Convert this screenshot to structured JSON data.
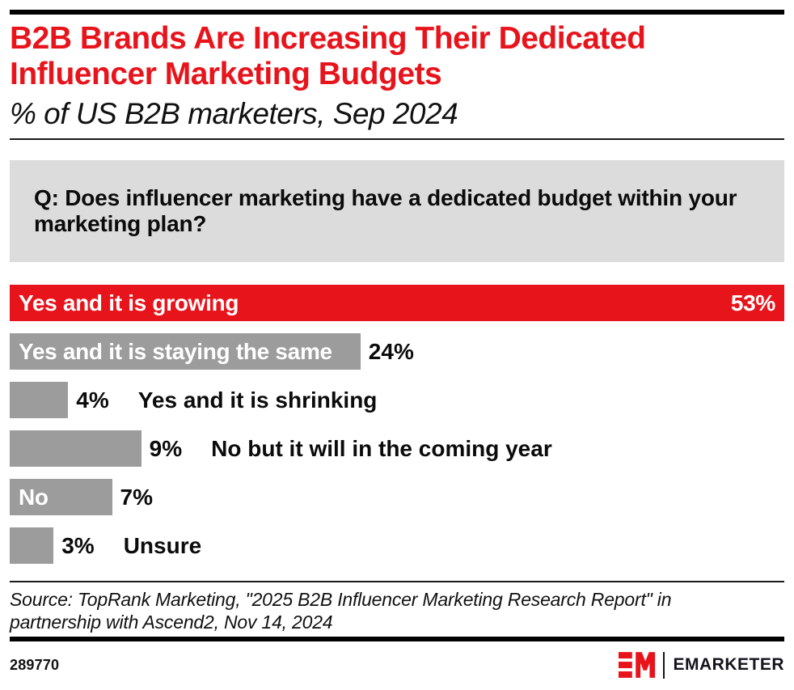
{
  "header": {
    "title": "B2B Brands Are Increasing Their Dedicated Influencer Marketing Budgets",
    "subtitle": "% of US B2B marketers, Sep 2024"
  },
  "question": "Q: Does influencer marketing have a dedicated budget within your marketing plan?",
  "chart_data": {
    "type": "bar",
    "orientation": "horizontal",
    "unit": "%",
    "xlim": [
      0,
      53
    ],
    "grid": false,
    "legend": false,
    "items": [
      {
        "label": "Yes and it is growing",
        "value": 53,
        "value_text": "53%",
        "color": "#E8141C",
        "label_inside": true,
        "value_inside": true
      },
      {
        "label": "Yes and it is staying the same",
        "value": 24,
        "value_text": "24%",
        "color": "#9C9C9C",
        "label_inside": true,
        "value_inside": false
      },
      {
        "label": "Yes and it is shrinking",
        "value": 4,
        "value_text": "4%",
        "color": "#9C9C9C",
        "label_inside": false,
        "value_inside": false
      },
      {
        "label": "No but it will in the coming year",
        "value": 9,
        "value_text": "9%",
        "color": "#9C9C9C",
        "label_inside": false,
        "value_inside": false
      },
      {
        "label": "No",
        "value": 7,
        "value_text": "7%",
        "color": "#9C9C9C",
        "label_inside": true,
        "value_inside": false
      },
      {
        "label": "Unsure",
        "value": 3,
        "value_text": "3%",
        "color": "#9C9C9C",
        "label_inside": false,
        "value_inside": false
      }
    ]
  },
  "source": "Source: TopRank Marketing, \"2025 B2B Influencer Marketing Research Report\" in partnership with Ascend2, Nov 14, 2024",
  "footer": {
    "chart_id": "289770",
    "brand": "EMARKETER",
    "logo_mark": "EM-monogram"
  },
  "colors": {
    "accent_red": "#E8141C",
    "bar_gray": "#9C9C9C",
    "question_bg": "#DCDCDC",
    "rule_black": "#000000"
  }
}
